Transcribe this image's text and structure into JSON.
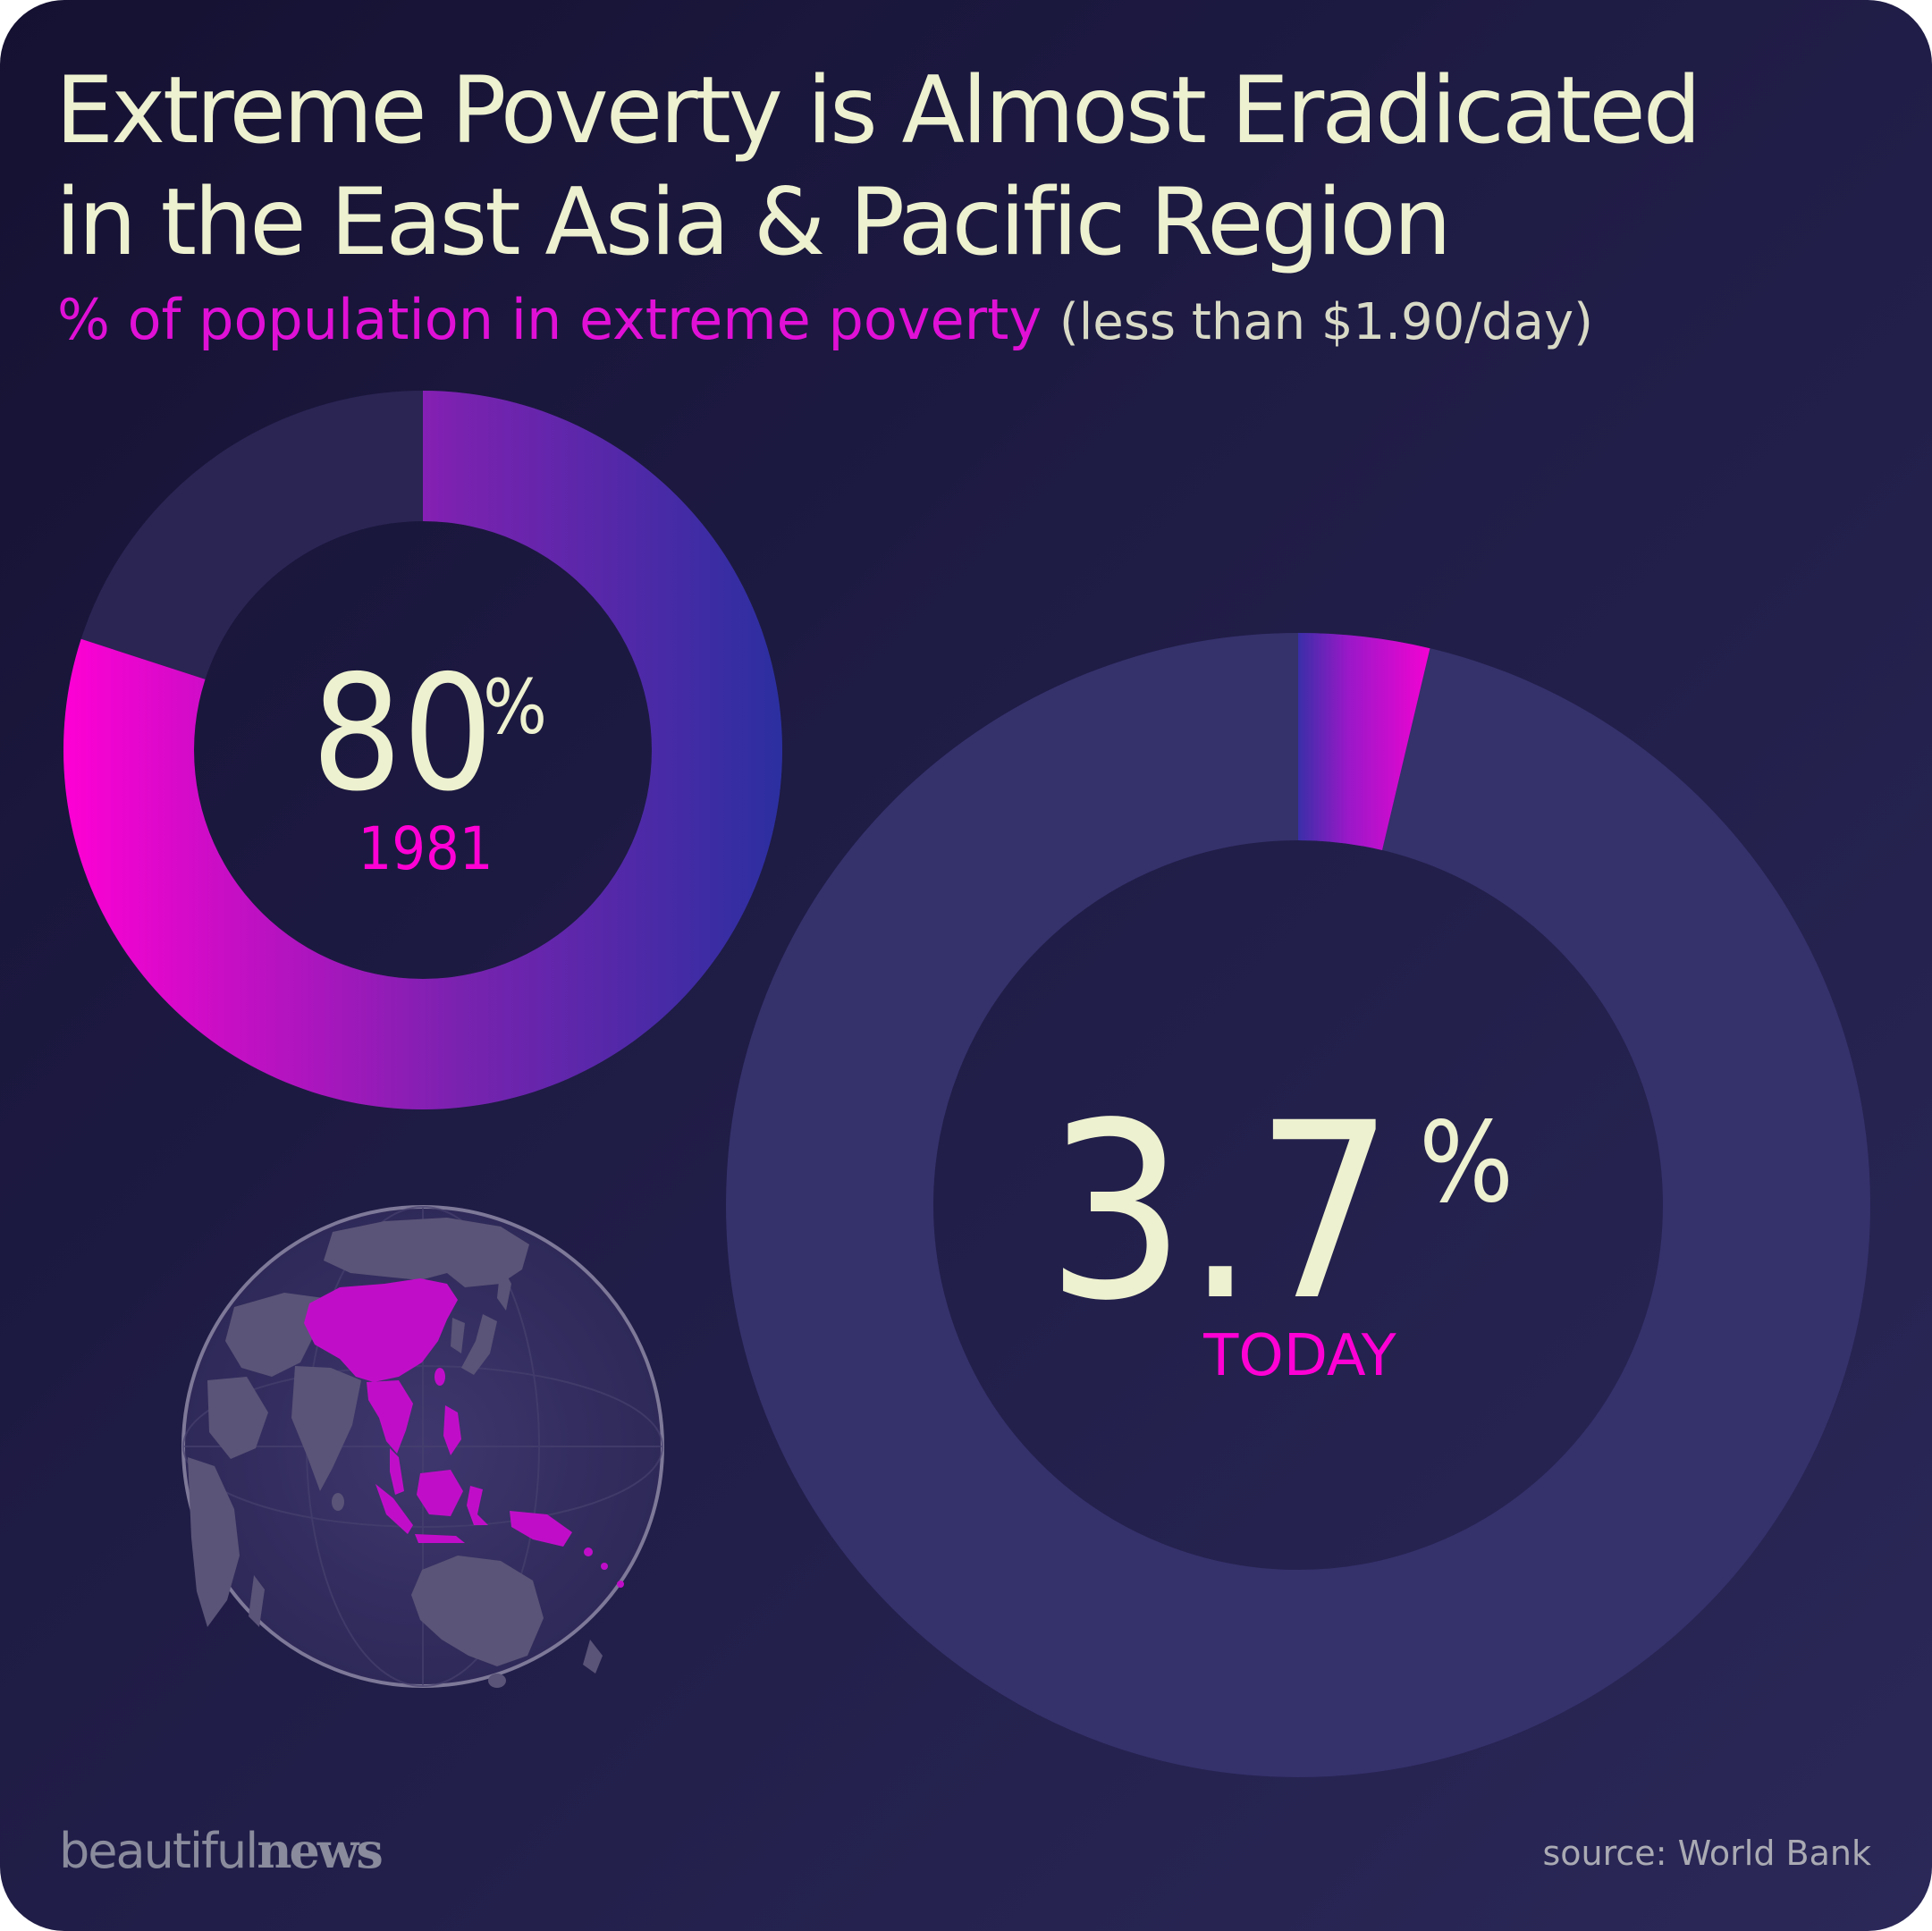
{
  "title": "Extreme Poverty is Almost Eradicated\nin the East Asia & Pacific Region",
  "subtitle": "% of population in extreme poverty",
  "subtitle_note": "(less than $1.90/day)",
  "logo": {
    "part1": "beautiful",
    "part2": "news"
  },
  "source": "source: World Bank",
  "colors": {
    "accent": "#ff00d4",
    "accent_mid": "#7a22b0",
    "accent_end": "#2b2fa0",
    "text_cream": "#eef1cf",
    "ring_track_1981": "#2a2553",
    "ring_track_today": "#35316b",
    "map_highlight": "#c00ec8",
    "map_land": "#5a5478"
  },
  "chart_data": [
    {
      "type": "pie",
      "style": "donut",
      "label": "1981",
      "value": 80,
      "value_display": "80",
      "unit": "%"
    },
    {
      "type": "pie",
      "style": "donut",
      "label": "TODAY",
      "value": 3.7,
      "value_display": "3.7",
      "unit": "%"
    }
  ],
  "map": {
    "icon": "globe-icon",
    "highlighted_region": "East Asia & Pacific"
  }
}
